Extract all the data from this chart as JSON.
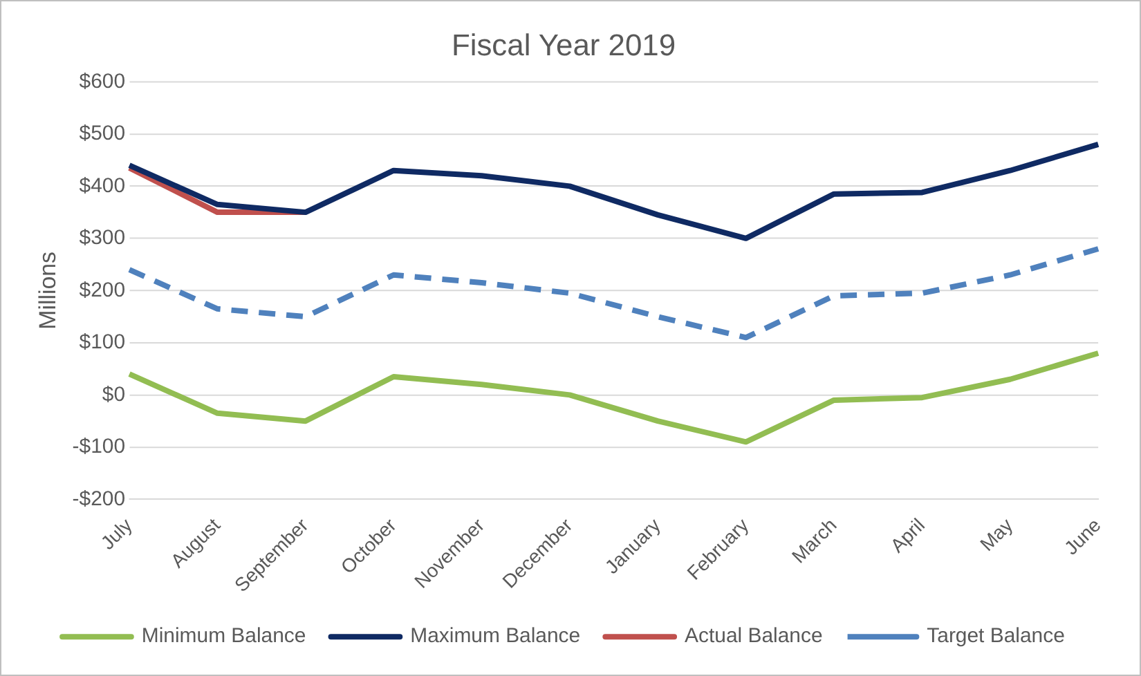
{
  "chart_data": {
    "type": "line",
    "title": "Fiscal Year 2019",
    "ylabel": "Millions",
    "categories": [
      "July",
      "August",
      "September",
      "October",
      "November",
      "December",
      "January",
      "February",
      "March",
      "April",
      "May",
      "June"
    ],
    "series": [
      {
        "name": "Minimum Balance",
        "color": "#92bd52",
        "values": [
          40,
          -35,
          -50,
          35,
          20,
          0,
          -50,
          -90,
          -10,
          -5,
          30,
          80
        ]
      },
      {
        "name": "Maximum Balance",
        "color": "#0f2a63",
        "values": [
          440,
          365,
          350,
          430,
          420,
          400,
          345,
          300,
          385,
          388,
          430,
          480
        ]
      },
      {
        "name": "Actual Balance",
        "color": "#c0504d",
        "values": [
          435,
          350,
          350,
          null,
          null,
          null,
          null,
          null,
          null,
          null,
          null,
          null
        ]
      },
      {
        "name": "Target Balance",
        "color": "#4f81bd",
        "line_style": "dashed",
        "values": [
          240,
          165,
          150,
          230,
          215,
          195,
          150,
          110,
          190,
          195,
          230,
          280
        ]
      }
    ],
    "ylim": [
      -200,
      600
    ],
    "yticks": [
      {
        "value": -200,
        "label": "-$200"
      },
      {
        "value": -100,
        "label": "-$100"
      },
      {
        "value": 0,
        "label": "$0"
      },
      {
        "value": 100,
        "label": "$100"
      },
      {
        "value": 200,
        "label": "$200"
      },
      {
        "value": 300,
        "label": "$300"
      },
      {
        "value": 400,
        "label": "$400"
      },
      {
        "value": 500,
        "label": "$500"
      },
      {
        "value": 600,
        "label": "$600"
      }
    ],
    "grid": "y",
    "legend": "bottom",
    "marker": "none",
    "line_style": "solid"
  }
}
